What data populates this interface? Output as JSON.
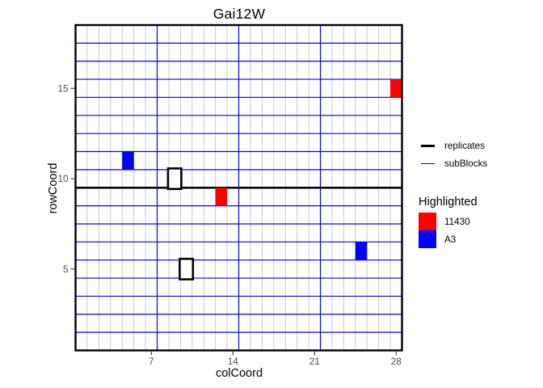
{
  "title": "Gai12W",
  "axes": {
    "xlabel": "colCoord",
    "ylabel": "rowCoord",
    "x_ticks": [
      7,
      14,
      21,
      28
    ],
    "y_ticks": [
      5,
      10,
      15
    ]
  },
  "legend": {
    "lines": [
      {
        "label": "replicates",
        "color": "#000000",
        "thickness": 3
      },
      {
        "label": "subBlocks",
        "color": "#0000ff",
        "thickness": 1
      }
    ],
    "fill_title": "Highlighted",
    "fill_items": [
      {
        "label": "11430",
        "color": "#ff0000"
      },
      {
        "label": "A3",
        "color": "#0000ff"
      }
    ]
  },
  "colors": {
    "highlight_red": "#ff0000",
    "highlight_blue": "#0000ff",
    "subblock_line": "#0000ff",
    "replicate_line": "#000000",
    "cell_grid_line": "#c9c9c9",
    "panel_border": "#000000",
    "tick_mark": "#333333",
    "tick_label": "#4d4d4d"
  },
  "chart_data": {
    "type": "heatmap",
    "title": "Gai12W",
    "xlabel": "colCoord",
    "ylabel": "rowCoord",
    "xlim": [
      0.5,
      28.5
    ],
    "ylim": [
      0.5,
      18.5
    ],
    "x_ticks": [
      7,
      14,
      21,
      28
    ],
    "y_ticks": [
      5,
      10,
      15
    ],
    "grid": {
      "cols": 28,
      "rows": 18,
      "cell_line_color": "#c9c9c9"
    },
    "replicate_boundaries": {
      "horizontal_rows": [
        9.5
      ],
      "color": "#000000",
      "line_width": 2.6
    },
    "subblock_boundaries": {
      "horizontal_rows": [
        1.5,
        2.5,
        3.5,
        4.5,
        5.5,
        6.5,
        7.5,
        8.5,
        10.5,
        11.5,
        12.5,
        13.5,
        14.5,
        15.5,
        16.5,
        17.5
      ],
      "vertical_cols": [
        7.5,
        14.5,
        21.5
      ],
      "color": "#0000ff",
      "line_width": 1.2
    },
    "highlighted_cells": [
      {
        "col": 28,
        "row": 15,
        "fill": "#ff0000",
        "label": "11430"
      },
      {
        "col": 13,
        "row": 9,
        "fill": "#ff0000",
        "label": "11430"
      },
      {
        "col": 5,
        "row": 11,
        "fill": "#0000ff",
        "label": "A3"
      },
      {
        "col": 25,
        "row": 6,
        "fill": "#0000ff",
        "label": "A3"
      }
    ],
    "outlined_cells": [
      {
        "col": 9,
        "row": 10
      },
      {
        "col": 10,
        "row": 5
      }
    ],
    "legend_position": "right",
    "grid_visible": true
  }
}
